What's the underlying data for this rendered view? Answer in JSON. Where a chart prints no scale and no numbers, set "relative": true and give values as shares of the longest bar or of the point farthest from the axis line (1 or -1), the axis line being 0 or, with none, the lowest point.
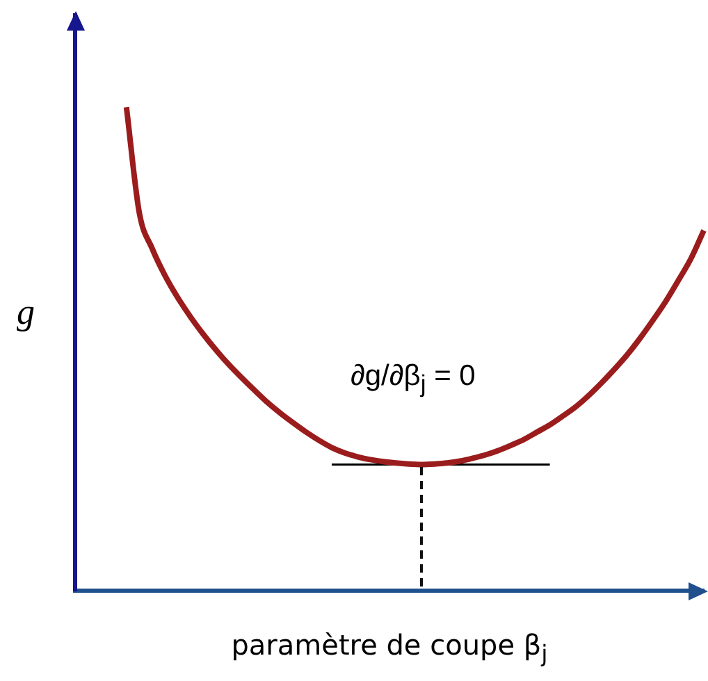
{
  "chart_data": {
    "type": "line",
    "relative": true,
    "xlabel": "paramètre de coupe β$_{j}$",
    "ylabel": "g",
    "annotations": [
      "∂g/∂β$_{j}$ = 0"
    ],
    "categories": [
      null,
      null,
      null,
      null,
      null,
      null,
      null,
      null,
      null,
      null,
      null,
      null,
      null,
      null,
      null,
      null,
      null,
      null,
      null,
      null,
      null,
      null,
      null,
      null,
      null,
      null,
      null,
      null,
      null,
      null,
      null,
      null,
      null,
      null,
      null,
      null,
      null,
      null,
      null,
      null,
      null,
      null,
      null,
      null,
      null,
      null,
      null,
      null,
      null,
      null
    ],
    "series": [
      {
        "color": "#9b1c1c",
        "values": [
          null,
          null,
          null,
          null,
          1.0,
          0.782,
          0.708,
          0.652,
          0.606,
          0.566,
          0.53,
          0.497,
          0.467,
          0.44,
          0.414,
          0.389,
          0.367,
          0.347,
          0.328,
          0.311,
          0.296,
          0.285,
          0.277,
          0.271,
          0.267,
          0.264,
          0.262,
          0.261,
          0.262,
          0.264,
          0.268,
          0.274,
          0.281,
          0.29,
          0.301,
          0.313,
          0.328,
          0.343,
          0.361,
          0.38,
          0.403,
          0.429,
          0.457,
          0.487,
          0.521,
          0.558,
          0.597,
          0.641,
          0.687,
          0.745
        ]
      },
      {
        "color": "#000000",
        "values": [
          null,
          null,
          null,
          null,
          null,
          null,
          null,
          null,
          null,
          null,
          null,
          null,
          null,
          null,
          null,
          null,
          null,
          null,
          null,
          null,
          0.261,
          0.261,
          0.261,
          0.261,
          0.261,
          0.261,
          0.261,
          0.261,
          0.261,
          0.261,
          0.261,
          0.261,
          0.261,
          0.261,
          0.261,
          0.261,
          0.261,
          0.261,
          null,
          null,
          null,
          null,
          null,
          null,
          null,
          null,
          null,
          null,
          null,
          null
        ]
      }
    ]
  }
}
